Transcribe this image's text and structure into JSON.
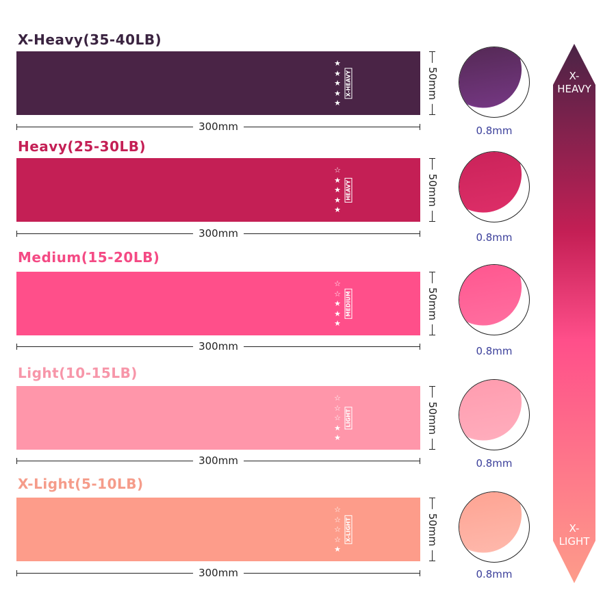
{
  "bands": [
    {
      "title": "X-Heavy(35-40LB)",
      "tag": "X-HEAVY",
      "stars_filled": 5,
      "stars_total": 5,
      "length": "300mm",
      "width": "50mm",
      "thickness": "0.8mm",
      "color": "#4a2446",
      "title_color": "#3a2340",
      "light": "#7a3a8a"
    },
    {
      "title": "Heavy(25-30LB)",
      "tag": "HEAVY",
      "stars_filled": 4,
      "stars_total": 5,
      "length": "300mm",
      "width": "50mm",
      "thickness": "0.8mm",
      "color": "#c41f55",
      "title_color": "#c41f55",
      "light": "#e0306a"
    },
    {
      "title": "Medium(15-20LB)",
      "tag": "MEDIUM",
      "stars_filled": 3,
      "stars_total": 5,
      "length": "300mm",
      "width": "50mm",
      "thickness": "0.8mm",
      "color": "#ff4f8a",
      "title_color": "#f44a84",
      "light": "#ff72a2"
    },
    {
      "title": "Light(10-15LB)",
      "tag": "LIGHT",
      "stars_filled": 2,
      "stars_total": 5,
      "length": "300mm",
      "width": "50mm",
      "thickness": "0.8mm",
      "color": "#ff96aa",
      "title_color": "#f796a9",
      "light": "#ffb0bf"
    },
    {
      "title": "X-Light(5-10LB)",
      "tag": "X-LIGHT",
      "stars_filled": 1,
      "stars_total": 5,
      "length": "300mm",
      "width": "50mm",
      "thickness": "0.8mm",
      "color": "#fd9c8a",
      "title_color": "#f59c8a",
      "light": "#ffbcb0"
    }
  ],
  "scale": {
    "top": "X-\nHEAVY",
    "bottom": "X-\nLIGHT",
    "top_color": "#4a2446",
    "mid_color": "#ff4f8a",
    "bottom_color": "#fd9c8a"
  }
}
